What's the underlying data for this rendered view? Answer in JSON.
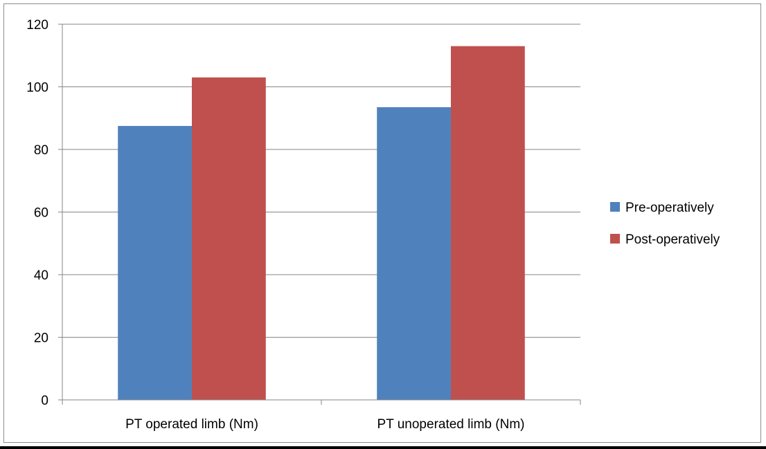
{
  "chart_data": {
    "type": "bar",
    "title": "",
    "xlabel": "",
    "ylabel": "",
    "categories": [
      "PT operated limb (Nm)",
      "PT unoperated limb (Nm)"
    ],
    "series": [
      {
        "name": "Pre-operatively",
        "values": [
          87.5,
          93.5
        ],
        "color": "#4f81bd"
      },
      {
        "name": "Post-operatively",
        "values": [
          103,
          113
        ],
        "color": "#c0504d"
      }
    ],
    "ylim": [
      0,
      120
    ],
    "yticks": [
      0,
      20,
      40,
      60,
      80,
      100,
      120
    ],
    "grid": true,
    "legend_position": "right"
  }
}
